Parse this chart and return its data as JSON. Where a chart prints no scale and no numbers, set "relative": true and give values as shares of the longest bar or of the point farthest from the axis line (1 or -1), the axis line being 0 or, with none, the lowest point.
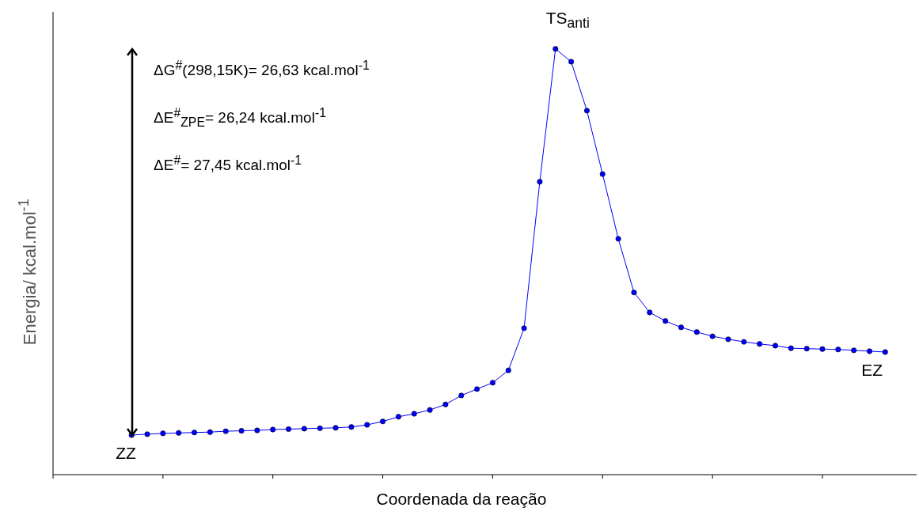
{
  "chart_data": {
    "type": "line",
    "relative": true,
    "xlabel": "Coordenada da reação",
    "ylabel": "Energia/ kcal.mol$^{-1}$",
    "categories": [
      null,
      null,
      null,
      null,
      null,
      null,
      null,
      null,
      null,
      null,
      null,
      null,
      null,
      null,
      null,
      null,
      null,
      null,
      null,
      null,
      null,
      null,
      null,
      null,
      null,
      null,
      null,
      null,
      null,
      null,
      null,
      null,
      null,
      null,
      null,
      null,
      null,
      null,
      null,
      null,
      null,
      null,
      null,
      null,
      null,
      null,
      null,
      null,
      null,
      null,
      null,
      null,
      null,
      null,
      null,
      null
    ],
    "series": [
      {
        "color": "#0000ff",
        "values": [
          null,
          null,
          null,
          null,
          null,
          0.093,
          0.095,
          0.097,
          0.098,
          0.099,
          0.1,
          0.102,
          0.103,
          0.104,
          0.106,
          0.107,
          0.108,
          0.109,
          0.11,
          0.112,
          0.117,
          0.125,
          0.136,
          0.143,
          0.152,
          0.165,
          0.186,
          0.201,
          0.216,
          0.245,
          0.344,
          0.688,
          1.0,
          0.97,
          0.855,
          0.706,
          0.554,
          0.428,
          0.381,
          0.361,
          0.346,
          0.335,
          0.325,
          0.318,
          0.312,
          0.307,
          0.303,
          0.297,
          0.296,
          0.295,
          0.294,
          0.292,
          0.29,
          0.288,
          null,
          null
        ]
      }
    ],
    "marker": "circle",
    "line_style": "solid",
    "grid": false,
    "legend": false,
    "annotations": [
      "ΔG$^{#}$(298,15K)= 26,63 kcal.mol$^{-1}$",
      "ΔE$^{#}$$_{ZPE}$= 26,24 kcal.mol$^{-1}$",
      "ΔE$^{#}$= 27,45 kcal.mol$^{-1}$",
      "TS$_{anti}$",
      "ZZ",
      "EZ"
    ]
  }
}
